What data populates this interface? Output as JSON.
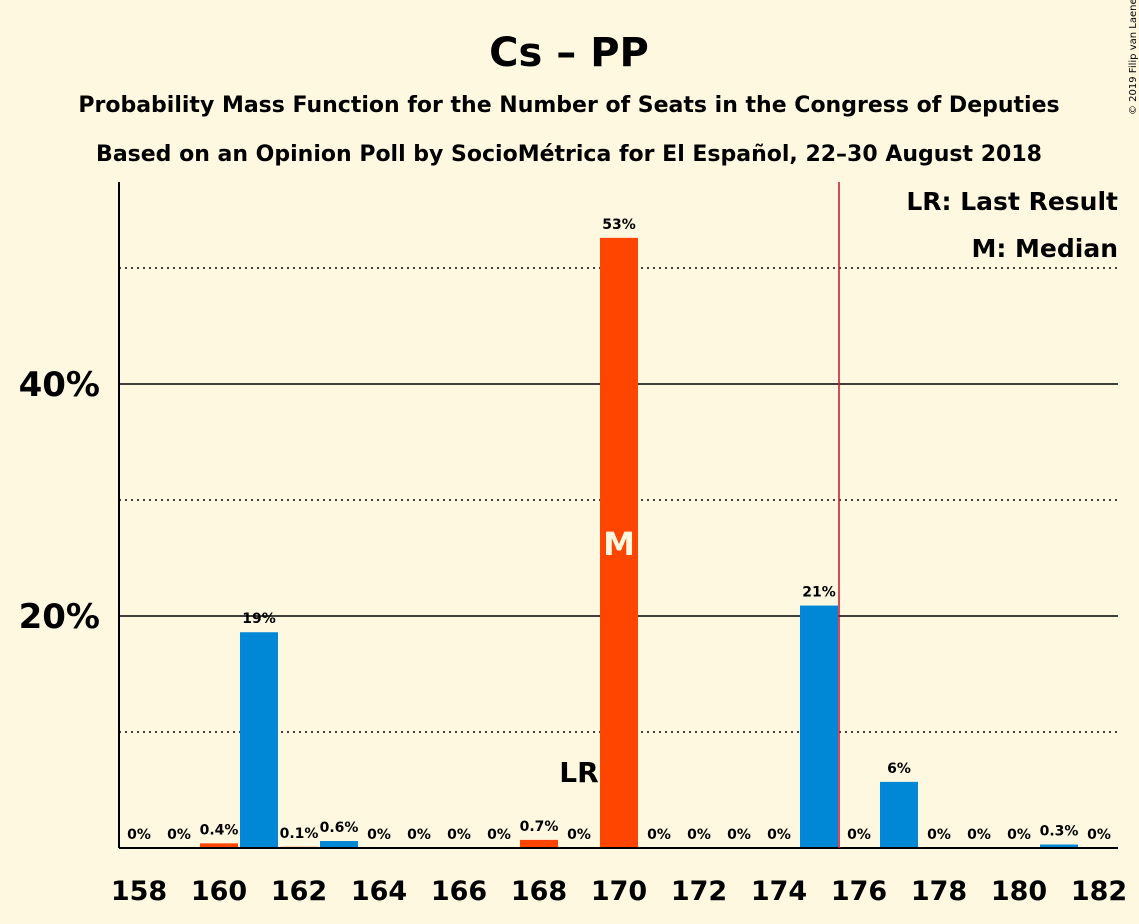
{
  "chart_data": {
    "type": "bar",
    "title": "Cs – PP",
    "subtitle_line1": "Probability Mass Function for the Number of Seats in the Congress of Deputies",
    "subtitle_line2": "Based on an Opinion Poll by SocioMétrica for El Español, 22–30 August 2018",
    "copyright": "© 2019 Filip van Laenen",
    "x": [
      158,
      159,
      160,
      161,
      162,
      163,
      164,
      165,
      166,
      167,
      168,
      169,
      170,
      171,
      172,
      173,
      174,
      175,
      176,
      177,
      178,
      179,
      180,
      181,
      182
    ],
    "values": [
      0,
      0,
      0.4,
      18.6,
      0.1,
      0.6,
      0,
      0,
      0,
      0,
      0.7,
      0,
      52.6,
      0,
      0,
      0,
      0,
      20.9,
      0,
      5.7,
      0,
      0,
      0,
      0.3,
      0
    ],
    "value_labels": [
      "0%",
      "0%",
      "0.4%",
      "19%",
      "0.1%",
      "0.6%",
      "0%",
      "0%",
      "0%",
      "0%",
      "0.7%",
      "0%",
      "53%",
      "0%",
      "0%",
      "0%",
      "0%",
      "21%",
      "0%",
      "6%",
      "0%",
      "0%",
      "0%",
      "0.3%",
      "0%"
    ],
    "bar_colors": [
      "#ff4500",
      "#0088d6",
      "#ff4500",
      "#0088d6",
      "#ff4500",
      "#0088d6",
      "#ff4500",
      "#0088d6",
      "#ff4500",
      "#0088d6",
      "#ff4500",
      "#0088d6",
      "#ff4500",
      "#0088d6",
      "#ff4500",
      "#0088d6",
      "#ff4500",
      "#0088d6",
      "#ff4500",
      "#0088d6",
      "#ff4500",
      "#0088d6",
      "#ff4500",
      "#0088d6",
      "#ff4500"
    ],
    "xtick_labels": [
      "158",
      "160",
      "162",
      "164",
      "166",
      "168",
      "170",
      "172",
      "174",
      "176",
      "178",
      "180",
      "182"
    ],
    "ytick_labels": [
      "20%",
      "40%"
    ],
    "ylim": [
      0,
      57
    ],
    "solid_gridlines": [
      20,
      40
    ],
    "dotted_gridlines": [
      10,
      30,
      50
    ],
    "last_result_seat": 169,
    "last_result_label": "LR",
    "median_seat": 170,
    "median_label": "M",
    "majority_line_after_seat": 175,
    "majority_line_color": "#c8102e",
    "legend": {
      "last_result": "LR: Last Result",
      "median": "M: Median",
      "position": "top-right"
    }
  }
}
